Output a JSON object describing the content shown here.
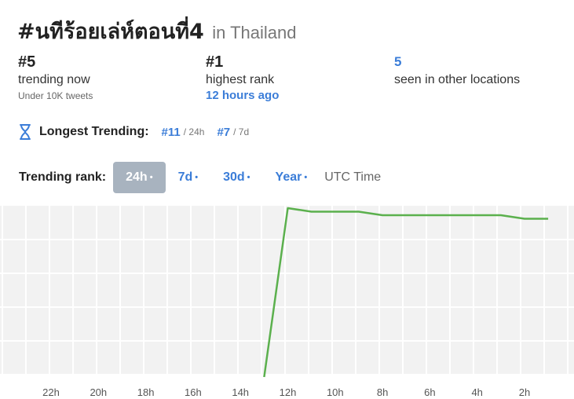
{
  "header": {
    "hashtag": "#นทีร้อยเล่ห์ตอนที่4",
    "location": "in Thailand"
  },
  "stats": {
    "current": {
      "value": "#5",
      "label": "trending now",
      "sub": "Under 10K tweets"
    },
    "highest": {
      "value": "#1",
      "label": "highest rank",
      "time": "12 hours ago"
    },
    "seen": {
      "value": "5",
      "label": "seen in other locations"
    }
  },
  "longest": {
    "label": "Longest Trending:",
    "items": [
      {
        "rank": "#11",
        "period": "/ 24h"
      },
      {
        "rank": "#7",
        "period": "/ 7d"
      }
    ]
  },
  "trending_rank": {
    "label": "Trending rank:",
    "tabs": [
      "24h",
      "7d",
      "30d",
      "Year"
    ],
    "active_tab": "24h",
    "dot": "•",
    "utc": "UTC Time"
  },
  "icons": {
    "longest": "hourglass-icon"
  },
  "colors": {
    "accent": "#3b7dd8",
    "line": "#5bb04d",
    "active_tab_bg": "#a8b3bf",
    "grid_bg": "#f2f2f2"
  },
  "chart_data": {
    "type": "line",
    "x": [
      "22h",
      "20h",
      "18h",
      "16h",
      "14h",
      "12h",
      "10h",
      "8h",
      "6h",
      "4h",
      "2h"
    ],
    "series": [
      {
        "points": [
          [
            13.0,
            null
          ],
          [
            12.0,
            1
          ],
          [
            11.0,
            2
          ],
          [
            10.0,
            2
          ],
          [
            9.0,
            2
          ],
          [
            8.0,
            3
          ],
          [
            7.0,
            3
          ],
          [
            6.0,
            3
          ],
          [
            5.0,
            3
          ],
          [
            4.0,
            3
          ],
          [
            3.0,
            3
          ],
          [
            2.0,
            4
          ],
          [
            1.0,
            4
          ]
        ]
      }
    ],
    "entry_from_below": true,
    "grid": true
  }
}
